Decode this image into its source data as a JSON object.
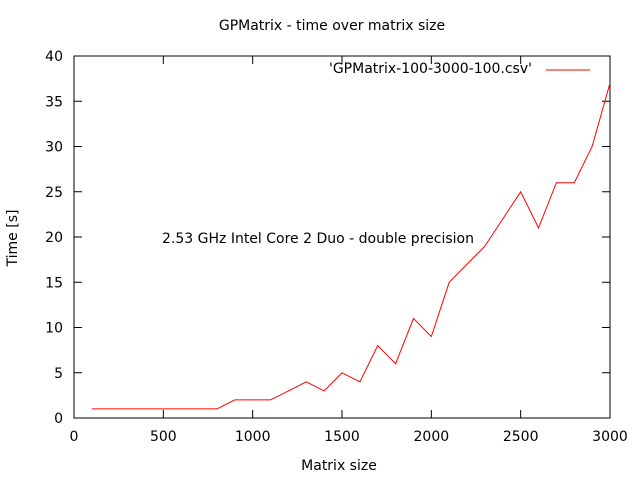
{
  "chart_data": {
    "type": "line",
    "title": "GPMatrix - time over matrix size",
    "xlabel": "Matrix size",
    "ylabel": "Time [s]",
    "xlim": [
      0,
      3000
    ],
    "ylim": [
      0,
      40
    ],
    "xticks": [
      0,
      500,
      1000,
      1500,
      2000,
      2500,
      3000
    ],
    "yticks": [
      0,
      5,
      10,
      15,
      20,
      25,
      30,
      35,
      40
    ],
    "grid": false,
    "legend_position": "top-right",
    "annotation": "2.53 GHz Intel Core 2 Duo - double precision",
    "series": [
      {
        "name": "'GPMatrix-100-3000-100.csv'",
        "color": "#ff0000",
        "x": [
          100,
          200,
          300,
          400,
          500,
          600,
          700,
          800,
          900,
          1000,
          1100,
          1200,
          1300,
          1400,
          1500,
          1600,
          1700,
          1800,
          1900,
          2000,
          2100,
          2200,
          2300,
          2400,
          2500,
          2600,
          2700,
          2800,
          2900,
          3000
        ],
        "y": [
          1,
          1,
          1,
          1,
          1,
          1,
          1,
          1,
          2,
          2,
          2,
          3,
          4,
          3,
          5,
          4,
          8,
          6,
          11,
          9,
          15,
          17,
          19,
          22,
          25,
          21,
          26,
          26,
          30,
          37
        ]
      }
    ]
  }
}
